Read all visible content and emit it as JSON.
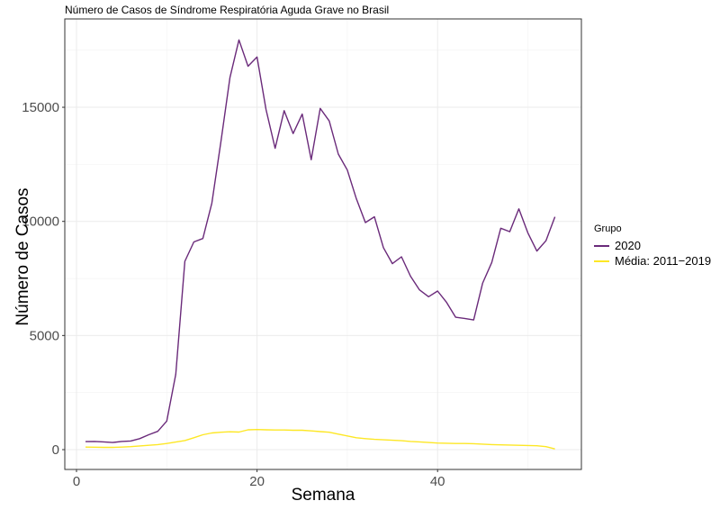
{
  "chart_data": {
    "type": "line",
    "title": "Número de Casos de Síndrome Respiratória Aguda Grave no Brasil",
    "xlabel": "Semana",
    "ylabel": "Número de Casos",
    "xlim": [
      -1,
      56
    ],
    "ylim": [
      -900,
      18800
    ],
    "x_ticks": [
      0,
      20,
      40
    ],
    "y_ticks": [
      0,
      5000,
      10000,
      15000
    ],
    "grid": true,
    "legend_position": "right",
    "legend_title": "Grupo",
    "x": [
      1,
      2,
      3,
      4,
      5,
      6,
      7,
      8,
      9,
      10,
      11,
      12,
      13,
      14,
      15,
      16,
      17,
      18,
      19,
      20,
      21,
      22,
      23,
      24,
      25,
      26,
      27,
      28,
      29,
      30,
      31,
      32,
      33,
      34,
      35,
      36,
      37,
      38,
      39,
      40,
      41,
      42,
      43,
      44,
      45,
      46,
      47,
      48,
      49,
      50,
      51,
      52,
      53
    ],
    "series": [
      {
        "name": "2020",
        "color": "#6A2A7A",
        "values": [
          350,
          360,
          340,
          310,
          360,
          380,
          480,
          650,
          800,
          1250,
          3300,
          8250,
          9100,
          9250,
          10800,
          13500,
          16300,
          17950,
          16800,
          17200,
          14900,
          13200,
          14850,
          13850,
          14700,
          12700,
          14950,
          14400,
          12950,
          12250,
          11000,
          9950,
          10200,
          8850,
          8150,
          8450,
          7600,
          7000,
          6700,
          6950,
          6450,
          5800,
          5750,
          5680,
          7300,
          8200,
          9700,
          9550,
          10550,
          9500,
          8700,
          9150,
          10200
        ]
      },
      {
        "name": "Média: 2011-2019",
        "color": "#FDE725",
        "values": [
          110,
          105,
          100,
          100,
          110,
          130,
          160,
          190,
          220,
          270,
          330,
          400,
          520,
          650,
          730,
          760,
          780,
          770,
          870,
          880,
          870,
          860,
          860,
          850,
          850,
          820,
          790,
          760,
          680,
          600,
          520,
          480,
          450,
          430,
          410,
          390,
          360,
          340,
          310,
          290,
          280,
          270,
          270,
          260,
          240,
          220,
          210,
          200,
          190,
          180,
          170,
          130,
          30
        ]
      }
    ]
  },
  "legend": {
    "title": "Grupo",
    "items": [
      {
        "label": "2020",
        "color": "#6A2A7A"
      },
      {
        "label": "Média: 2011−2019",
        "color": "#FDE725"
      }
    ]
  },
  "axes": {
    "x_label": "Semana",
    "y_label": "Número de Casos",
    "x_tick_labels": [
      "0",
      "20",
      "40"
    ],
    "y_tick_labels": [
      "0",
      "5000",
      "10000",
      "15000"
    ]
  },
  "title": "Número de Casos de Síndrome Respiratória Aguda Grave no Brasil"
}
